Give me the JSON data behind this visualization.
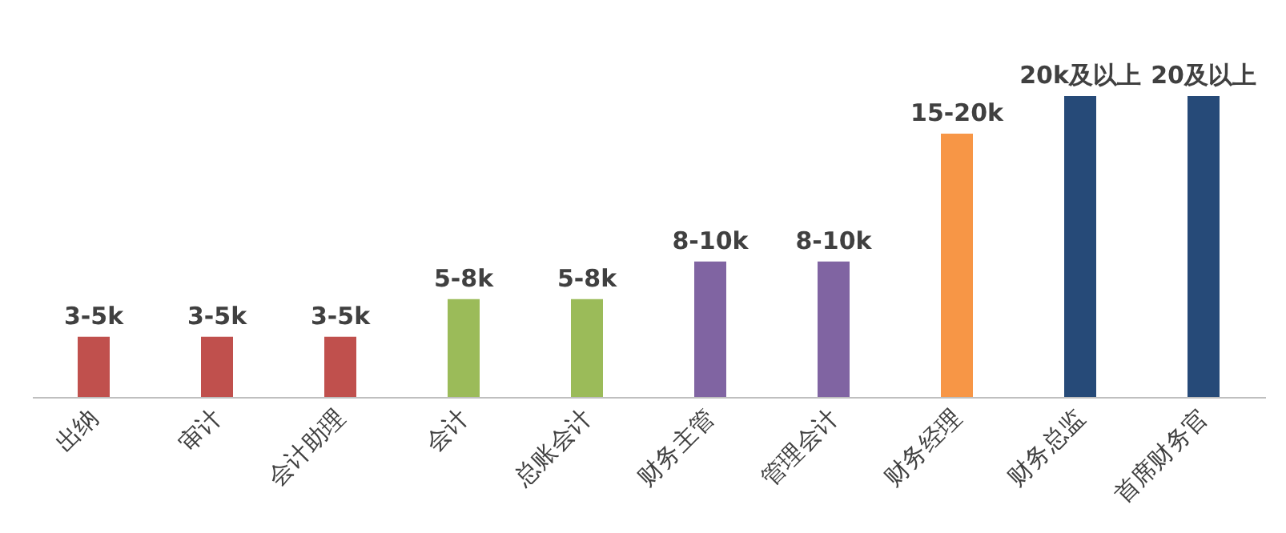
{
  "chart_data": {
    "type": "bar",
    "ylim": [
      0,
      20
    ],
    "tick_labels": "x",
    "categories": [
      "出纳",
      "审计",
      "会计助理",
      "会计",
      "总账会计",
      "财务主管",
      "管理会计",
      "财务经理",
      "财务总监",
      "首席财务官"
    ],
    "values": [
      4,
      4,
      4,
      6.5,
      6.5,
      9,
      9,
      17.5,
      20,
      20
    ],
    "colors": [
      "#c0504d",
      "#c0504d",
      "#c0504d",
      "#9bbb59",
      "#9bbb59",
      "#8064a2",
      "#8064a2",
      "#f79646",
      "#264a78",
      "#264a78"
    ],
    "value_labels": [
      "3-5k",
      "3-5k",
      "3-5k",
      "5-8k",
      "5-8k",
      "8-10k",
      "8-10k",
      "15-20k",
      "20k及以上",
      "20及以上"
    ]
  }
}
